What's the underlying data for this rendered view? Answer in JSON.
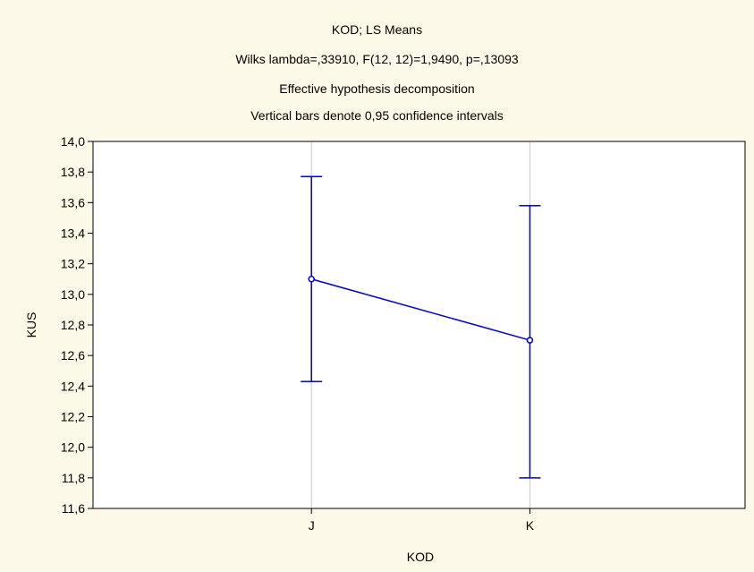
{
  "chart_data": {
    "type": "line",
    "title_lines": [
      "KOD; LS Means",
      "Wilks lambda=,33910, F(12, 12)=1,9490, p=,13093",
      "Effective hypothesis decomposition",
      "Vertical bars denote 0,95 confidence intervals"
    ],
    "xlabel": "KOD",
    "ylabel": "KUS",
    "categories": [
      "J",
      "K"
    ],
    "series": [
      {
        "means": [
          13.1,
          12.7
        ],
        "lower": [
          12.43,
          11.8
        ],
        "upper": [
          13.77,
          13.58
        ]
      }
    ],
    "ylim": [
      11.6,
      14.0
    ],
    "yticks": [
      11.6,
      11.8,
      12.0,
      12.2,
      12.4,
      12.6,
      12.8,
      13.0,
      13.2,
      13.4,
      13.6,
      13.8,
      14.0
    ],
    "ytick_labels": [
      "11,6",
      "11,8",
      "12,0",
      "12,2",
      "12,4",
      "12,6",
      "12,8",
      "13,0",
      "13,2",
      "13,4",
      "13,6",
      "13,8",
      "14,0"
    ],
    "grid": true,
    "colors": {
      "background": "#fdf9e8",
      "plot_area": "#ffffff",
      "series": "#0000cc",
      "grid": "#c8c8c8",
      "axis": "#000000"
    }
  }
}
